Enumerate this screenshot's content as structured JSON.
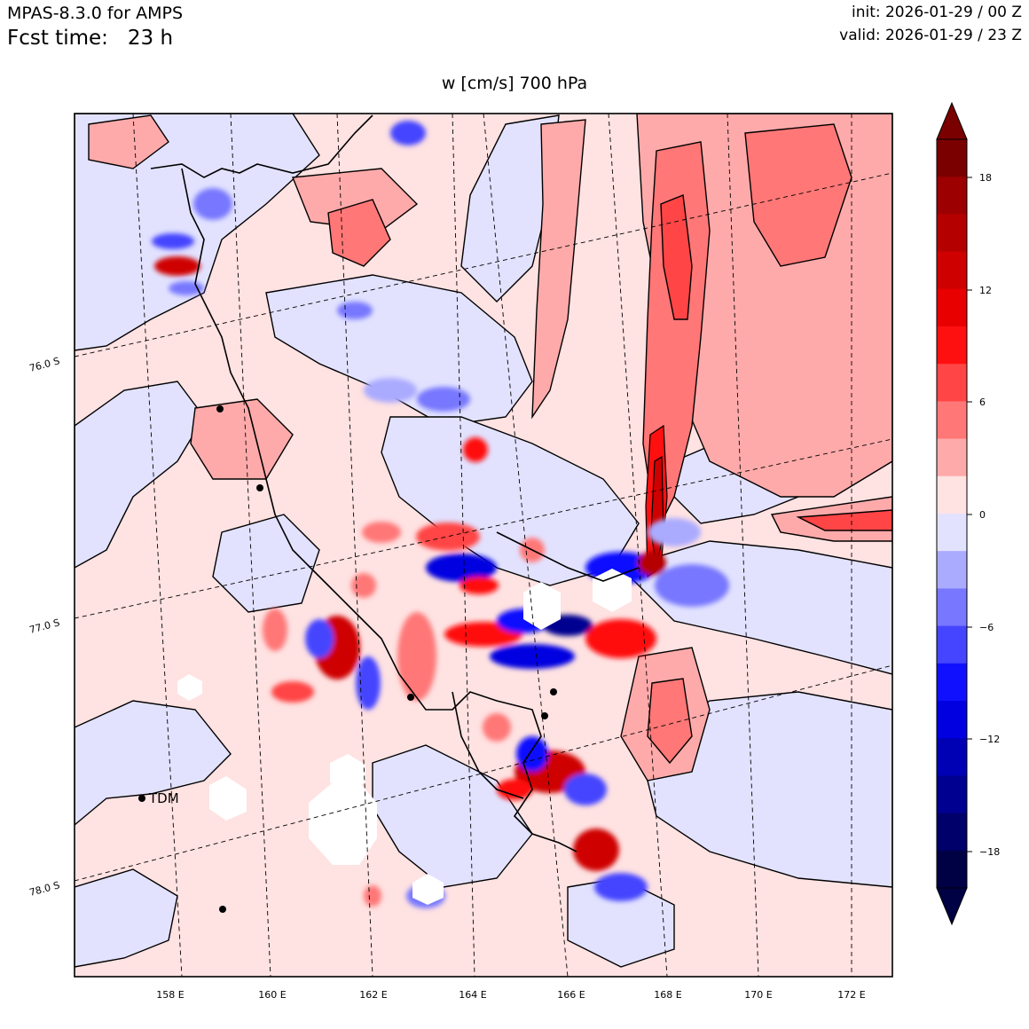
{
  "header": {
    "model": "MPAS-8.3.0 for AMPS",
    "fcst_label": "Fcst time:",
    "fcst_value": "23 h",
    "init": "init: 2026-01-29 / 00 Z",
    "valid": "valid: 2026-01-29 / 23 Z"
  },
  "field_title": "w [cm/s]    700 hPa",
  "map": {
    "lon_labels": [
      "158 E",
      "160 E",
      "162 E",
      "164 E",
      "166 E",
      "168 E",
      "170 E",
      "172 E"
    ],
    "lat_labels": [
      "76.0 S",
      "77.0 S",
      "78.0 S"
    ],
    "station_label": "TDM"
  },
  "colorbar": {
    "tick_labels": [
      "18",
      "12",
      "6",
      "0",
      "−6",
      "−12",
      "−18"
    ],
    "colors_top_to_bottom": [
      "#7a0000",
      "#9c0000",
      "#b50000",
      "#cf0000",
      "#e80000",
      "#ff1010",
      "#ff4545",
      "#ff7777",
      "#ffaaaa",
      "#ffe2e2",
      "#e2e2ff",
      "#aaaaff",
      "#7777ff",
      "#4545ff",
      "#1010ff",
      "#0000e0",
      "#0000b5",
      "#000090",
      "#00006a",
      "#000045"
    ]
  }
}
